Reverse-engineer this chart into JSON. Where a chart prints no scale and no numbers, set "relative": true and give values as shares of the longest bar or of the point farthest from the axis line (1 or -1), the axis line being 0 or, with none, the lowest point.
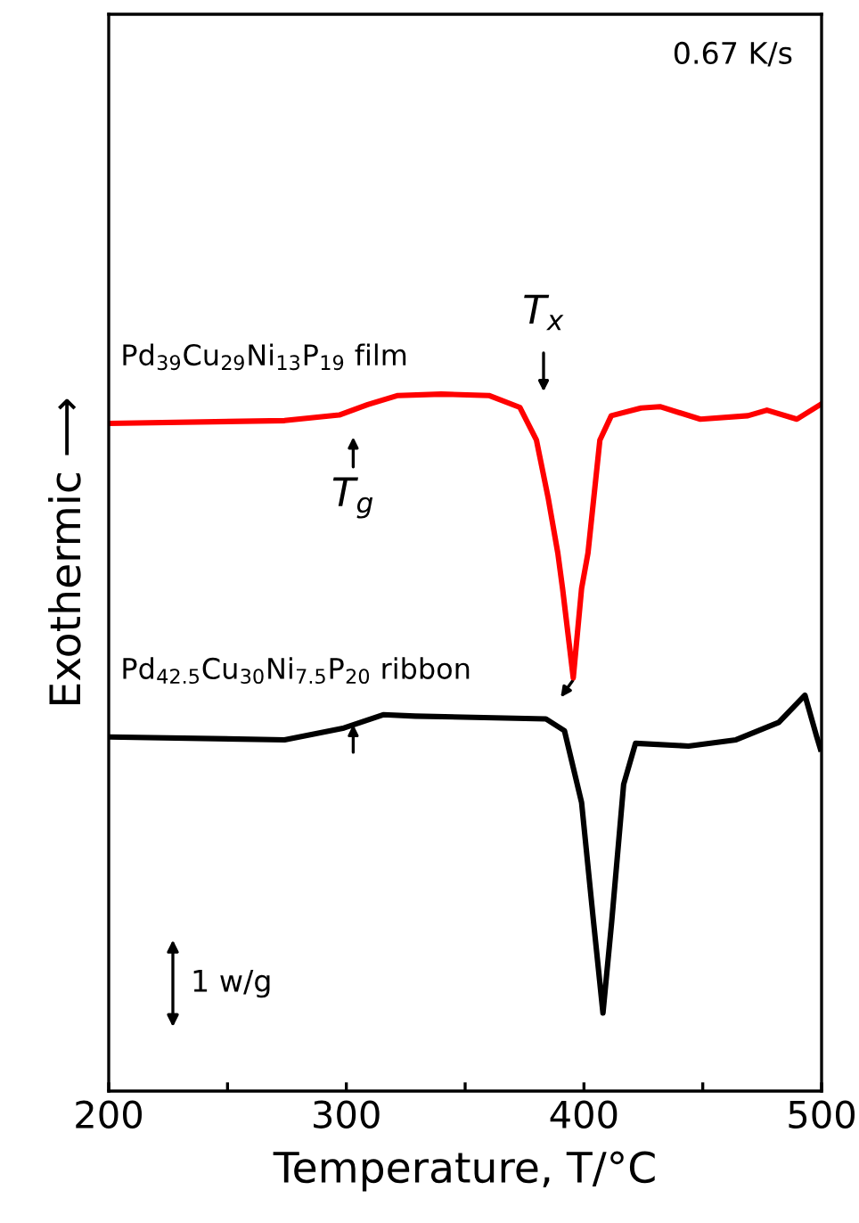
{
  "chart_data": {
    "type": "line",
    "relative": true,
    "xlabel": "Temperature, T/°C",
    "ylabel": "Exothermic ⟶",
    "xlim": [
      200,
      500
    ],
    "xticks": [
      200,
      {
        "value": 250,
        "label": null
      },
      300,
      {
        "value": 350,
        "label": null
      },
      400,
      {
        "value": 450,
        "label": null
      },
      500
    ],
    "tick_labels": "x",
    "grid": false,
    "legend": false,
    "marker": "none",
    "line_style": "solid",
    "series": [
      {
        "name": "Pd$_{39}$Cu$_{29}$Ni$_{13}$P$_{19}$ film",
        "color": "#ff0000",
        "x": [
          200,
          274,
          297,
          309,
          321.7,
          340,
          360,
          373,
          380,
          385,
          389,
          391,
          395.5,
          399,
          401.7,
          406.7,
          411.5,
          424,
          432,
          449,
          469,
          477,
          489.6,
          499.5
        ],
        "values": [
          0.958,
          0.962,
          0.97,
          0.985,
          0.998,
          1.0,
          0.998,
          0.981,
          0.934,
          0.85,
          0.772,
          0.721,
          0.593,
          0.721,
          0.772,
          0.934,
          0.969,
          0.98,
          0.982,
          0.964,
          0.969,
          0.977,
          0.964,
          0.985
        ]
      },
      {
        "name": "Pd$_{42.5}$Cu$_{30}$Ni$_{7.5}$P$_{20}$ ribbon",
        "color": "#000000",
        "x": [
          200,
          274,
          299,
          315.5,
          329,
          384,
          391.8,
          399,
          404,
          408,
          411.7,
          416.7,
          421.7,
          444,
          464,
          482,
          493,
          497.9,
          499.5
        ],
        "values": [
          0.508,
          0.504,
          0.521,
          0.54,
          0.538,
          0.534,
          0.517,
          0.414,
          0.244,
          0.112,
          0.244,
          0.44,
          0.499,
          0.495,
          0.504,
          0.529,
          0.568,
          0.509,
          0.491
        ]
      }
    ],
    "annotations": [
      "0.67 K/s",
      "1 w/g",
      "T$_{x}$",
      "T$_{g}$"
    ]
  }
}
